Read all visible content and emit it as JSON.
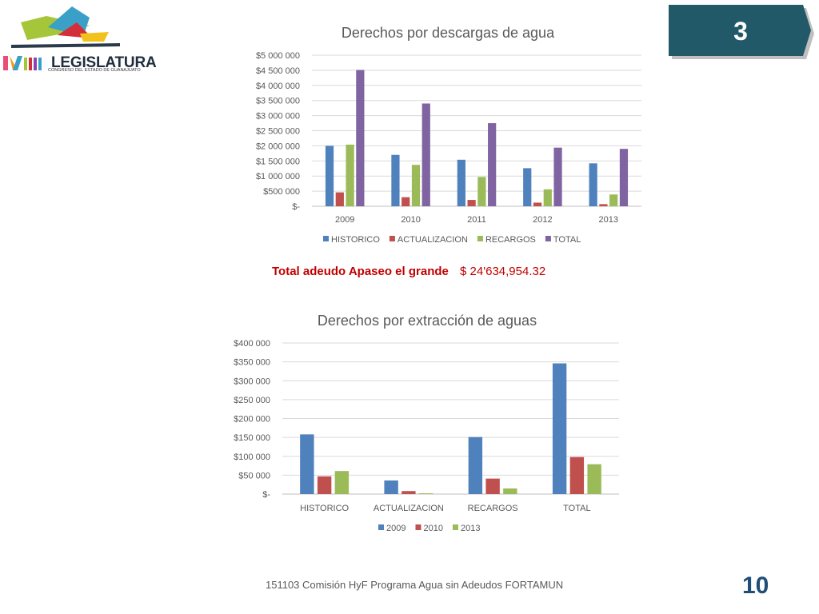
{
  "header": {
    "logo_text": "LEGISLATURA",
    "logo_sub": "CONGRESO DEL ESTADO DE GUANAJUATO",
    "logo_roman": "LXIII",
    "slide_badge": "3"
  },
  "summary": {
    "label": "Total adeudo Apaseo el grande",
    "value": "$ 24'634,954.32"
  },
  "footer": {
    "text": "151103 Comisión HyF Programa Agua sin Adeudos FORTAMUN",
    "page_number": "10"
  },
  "colors": {
    "blue": "#4f81bd",
    "red": "#c0504d",
    "green": "#9bbb59",
    "purple": "#8064a2",
    "badge": "#215968",
    "grid": "#d9d9d9"
  },
  "chart_data": [
    {
      "type": "bar",
      "title": "Derechos por descargas de agua",
      "categories": [
        "2009",
        "2010",
        "2011",
        "2012",
        "2013"
      ],
      "yticks": [
        "$-",
        "$500 000",
        "$1 000 000",
        "$1 500 000",
        "$2 000 000",
        "$2 500 000",
        "$3 000 000",
        "$3 500 000",
        "$4 000 000",
        "$4 500 000",
        "$5 000 000"
      ],
      "ylim": [
        0,
        5000000
      ],
      "grid": true,
      "legend": "bottom",
      "series": [
        {
          "name": "HISTORICO",
          "color": "blue",
          "values": [
            2000000,
            1700000,
            1540000,
            1260000,
            1420000
          ]
        },
        {
          "name": "ACTUALIZACION",
          "color": "red",
          "values": [
            460000,
            300000,
            210000,
            120000,
            70000
          ]
        },
        {
          "name": "RECARGOS",
          "color": "green",
          "values": [
            2040000,
            1370000,
            970000,
            560000,
            390000
          ]
        },
        {
          "name": "TOTAL",
          "color": "purple",
          "values": [
            4510000,
            3400000,
            2750000,
            1940000,
            1900000
          ]
        }
      ]
    },
    {
      "type": "bar",
      "title": "Derechos por extracción de aguas",
      "categories": [
        "HISTORICO",
        "ACTUALIZACION",
        "RECARGOS",
        "TOTAL"
      ],
      "yticks": [
        "$-",
        "$50 000",
        "$100 000",
        "$150 000",
        "$200 000",
        "$250 000",
        "$300 000",
        "$350 000",
        "$400 000"
      ],
      "ylim": [
        0,
        400000
      ],
      "grid": true,
      "legend": "bottom",
      "series": [
        {
          "name": "2009",
          "color": "blue",
          "values": [
            158000,
            36000,
            151000,
            346000
          ]
        },
        {
          "name": "2010",
          "color": "red",
          "values": [
            47000,
            8000,
            41000,
            98000
          ]
        },
        {
          "name": "2013",
          "color": "green",
          "values": [
            61000,
            2000,
            15000,
            79000
          ]
        }
      ]
    }
  ]
}
